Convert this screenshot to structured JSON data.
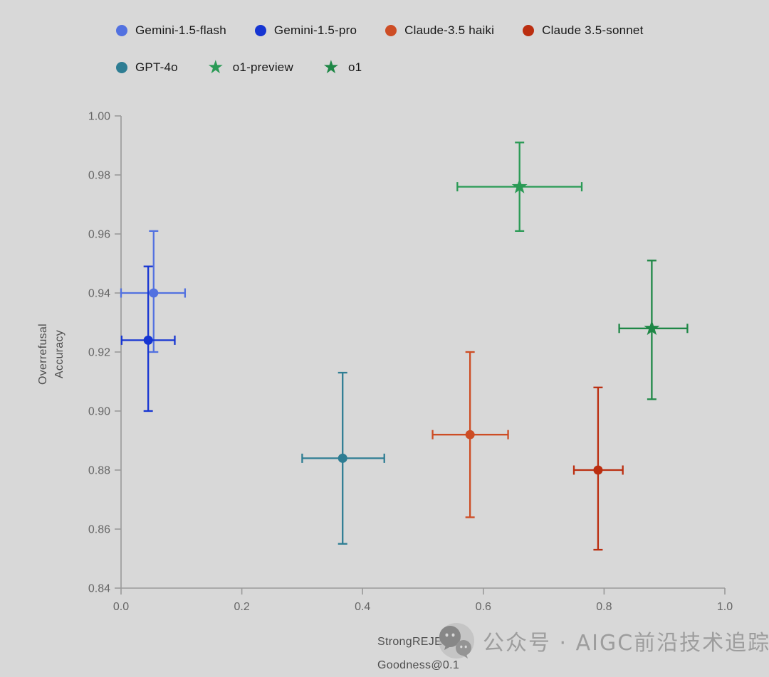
{
  "background_color": "#d8d8d8",
  "axis_color": "#9a9a9a",
  "tick_text_color": "#666666",
  "legend": {
    "items": [
      {
        "label": "Gemini-1.5-flash",
        "color": "#5271e0",
        "shape": "circle"
      },
      {
        "label": "Gemini-1.5-pro",
        "color": "#1635d2",
        "shape": "circle"
      },
      {
        "label": "Claude-3.5 haiki",
        "color": "#cd4d25",
        "shape": "circle"
      },
      {
        "label": "Claude 3.5-sonnet",
        "color": "#bb2e10",
        "shape": "circle"
      },
      {
        "label": "GPT-4o",
        "color": "#2e7d93",
        "shape": "circle"
      },
      {
        "label": "o1-preview",
        "color": "#2a9a55",
        "shape": "star"
      },
      {
        "label": "o1",
        "color": "#1e8746",
        "shape": "star"
      }
    ],
    "rows": [
      [
        0,
        1,
        2,
        3
      ],
      [
        4,
        5,
        6
      ]
    ]
  },
  "chart_data": {
    "type": "scatter",
    "title": "",
    "xlabel": "StrongREJECT Goodness@0.1",
    "xlabel_lines": [
      "StrongREJECT",
      "Goodness@0.1"
    ],
    "ylabel": "Overrefusal Accuracy",
    "ylabel_lines": [
      "Overrefusal",
      "Accuracy"
    ],
    "xlim": [
      0.0,
      1.0
    ],
    "ylim": [
      0.84,
      1.0
    ],
    "xticks": [
      0.0,
      0.2,
      0.4,
      0.6,
      0.8,
      1.0
    ],
    "xtick_labels": [
      "0.0",
      "0.2",
      "0.4",
      "0.6",
      "0.8",
      "1.0"
    ],
    "yticks": [
      0.84,
      0.86,
      0.88,
      0.9,
      0.92,
      0.94,
      0.96,
      0.98,
      1.0
    ],
    "ytick_labels": [
      "0.84",
      "0.86",
      "0.88",
      "0.90",
      "0.92",
      "0.94",
      "0.96",
      "0.98",
      "1.00"
    ],
    "grid": false,
    "legend_position": "top",
    "series": [
      {
        "name": "Gemini-1.5-flash",
        "marker": "circle",
        "color": "#5271e0",
        "x": 0.054,
        "y": 0.94,
        "x_low": 0.0,
        "x_high": 0.106,
        "y_low": 0.92,
        "y_high": 0.961
      },
      {
        "name": "Gemini-1.5-pro",
        "marker": "circle",
        "color": "#1635d2",
        "x": 0.045,
        "y": 0.924,
        "x_low": 0.001,
        "x_high": 0.089,
        "y_low": 0.9,
        "y_high": 0.949
      },
      {
        "name": "Claude-3.5 haiki",
        "marker": "circle",
        "color": "#cd4d25",
        "x": 0.578,
        "y": 0.892,
        "x_low": 0.516,
        "x_high": 0.641,
        "y_low": 0.864,
        "y_high": 0.92
      },
      {
        "name": "Claude 3.5-sonnet",
        "marker": "circle",
        "color": "#bb2e10",
        "x": 0.79,
        "y": 0.88,
        "x_low": 0.75,
        "x_high": 0.831,
        "y_low": 0.853,
        "y_high": 0.908
      },
      {
        "name": "GPT-4o",
        "marker": "circle",
        "color": "#2e7d93",
        "x": 0.367,
        "y": 0.884,
        "x_low": 0.3,
        "x_high": 0.436,
        "y_low": 0.855,
        "y_high": 0.913
      },
      {
        "name": "o1-preview",
        "marker": "star",
        "color": "#2a9a55",
        "x": 0.66,
        "y": 0.976,
        "x_low": 0.557,
        "x_high": 0.763,
        "y_low": 0.961,
        "y_high": 0.991
      },
      {
        "name": "o1",
        "marker": "star",
        "color": "#1e8746",
        "x": 0.879,
        "y": 0.928,
        "x_low": 0.825,
        "x_high": 0.938,
        "y_low": 0.904,
        "y_high": 0.951
      }
    ]
  },
  "watermark": {
    "text": "公众号 · AIGC前沿技术追踪",
    "icon": "chat-bubbles-icon"
  }
}
